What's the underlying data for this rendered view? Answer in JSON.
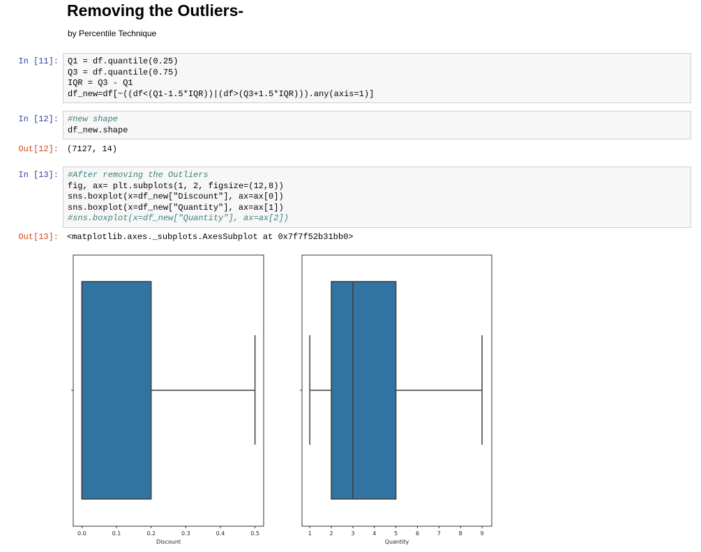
{
  "header": {
    "title": "Removing the Outliers-",
    "subtitle": "by Percentile Technique"
  },
  "cells": [
    {
      "prompt": "In [11]:",
      "code": [
        "Q1 = df.quantile(0.25)",
        "Q3 = df.quantile(0.75)",
        "IQR = Q3 - Q1",
        "df_new=df[~((df<(Q1-1.5*IQR))|(df>(Q3+1.5*IQR))).any(axis=1)]"
      ]
    },
    {
      "prompt": "In [12]:",
      "code": [
        "#new shape",
        "df_new.shape"
      ],
      "output_prompt": "Out[12]:",
      "output": "(7127, 14)"
    },
    {
      "prompt": "In [13]:",
      "code": [
        "#After removing the Outliers",
        "fig, ax= plt.subplots(1, 2, figsize=(12,8))",
        "sns.boxplot(x=df_new[\"Discount\"], ax=ax[0])",
        "sns.boxplot(x=df_new[\"Quantity\"], ax=ax[1])",
        "#sns.boxplot(x=df_new[\"Quantity\"], ax=ax[2])"
      ],
      "output_prompt": "Out[13]:",
      "output": "<matplotlib.axes._subplots.AxesSubplot at 0x7f7f52b31bb0>"
    }
  ],
  "chart_data": [
    {
      "type": "box",
      "xlabel": "Discount",
      "color": "#3274a1",
      "stats": {
        "min": 0,
        "q1": 0,
        "median": 0,
        "q3": 0.2,
        "max": 0.5
      },
      "xlim": [
        -0.025,
        0.525
      ],
      "xticks": [
        {
          "value": 0,
          "label": "0.0"
        },
        0.1,
        0.2,
        0.3,
        0.4,
        0.5
      ]
    },
    {
      "type": "box",
      "xlabel": "Quantity",
      "color": "#3274a1",
      "stats": {
        "min": 1,
        "q1": 2,
        "median": 3,
        "q3": 5,
        "max": 9
      },
      "xlim": [
        0.64,
        9.45
      ],
      "xticks": [
        1,
        2,
        3,
        4,
        5,
        6,
        7,
        8,
        9
      ]
    }
  ]
}
